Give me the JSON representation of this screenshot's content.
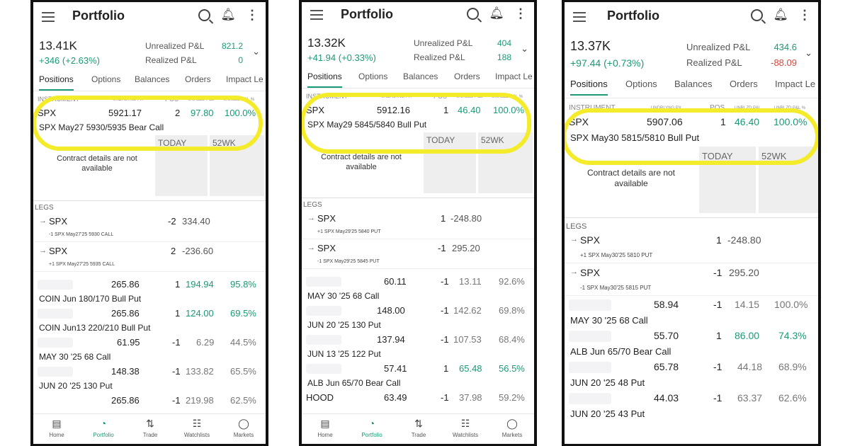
{
  "header": {
    "title": "Portfolio"
  },
  "labels": {
    "unrealized": "Unrealized P&L",
    "realized": "Realized P&L",
    "tabs": [
      "Positions",
      "Options",
      "Balances",
      "Orders",
      "Impact Le"
    ],
    "tabs_p1": [
      "Positions",
      "Options",
      "Balances",
      "Orders",
      "Impact Le"
    ],
    "col_instrument": "INSTRUMENT",
    "col_undpx": "UNDRLYNG PX",
    "col_pos": "POS",
    "col_unrlzd": "UNRLZD P&L",
    "col_unrlzd_pct": "UNRLZD P&L %",
    "today": "TODAY",
    "wk52": "52WK",
    "details_line1": "Contract details are not",
    "details_line2": "available",
    "legs": "LEGS"
  },
  "nav": [
    "Home",
    "Portfolio",
    "Trade",
    "Watchlists",
    "Markets"
  ],
  "p1": {
    "balance": "13.41K",
    "change": "+346 (+2.63%)",
    "unrealized": "821.2",
    "realized": "0",
    "pos": {
      "symbol": "SPX",
      "price": "5921.17",
      "qty": "2",
      "pnl": "97.80",
      "pct": "100.0%",
      "desc": "SPX May27 5930/5935 Bear Call"
    },
    "legs": [
      {
        "sym": "SPX",
        "pos": "-2",
        "price": "334.40",
        "sub": "-1 SPX May27'25 5930 CALL"
      },
      {
        "sym": "SPX",
        "pos": "2",
        "price": "-236.60",
        "sub": "+1 SPX May27'25 5935 CALL"
      }
    ],
    "rows": [
      {
        "px": "265.86",
        "pos": "1",
        "pnl": "194.94",
        "pct": "95.8%",
        "desc": "COIN Jun 180/170 Bull Put"
      },
      {
        "px": "265.86",
        "pos": "1",
        "pnl": "124.00",
        "pct": "69.5%",
        "desc": "COIN Jun13 220/210 Bull Put"
      },
      {
        "px": "61.95",
        "pos": "-1",
        "pnl": "6.29",
        "pct": "44.5%",
        "desc": "MAY 30 '25 68 Call"
      },
      {
        "px": "148.38",
        "pos": "-1",
        "pnl": "133.82",
        "pct": "65.5%",
        "desc": "JUN 20 '25 130 Put"
      },
      {
        "px": "265.86",
        "pos": "-1",
        "pnl": "219.98",
        "pct": "62.5%",
        "desc": ""
      }
    ]
  },
  "p2": {
    "balance": "13.32K",
    "change": "+41.94 (+0.33%)",
    "unrealized": "404",
    "realized": "188",
    "pos": {
      "symbol": "SPX",
      "price": "5912.16",
      "qty": "1",
      "pnl": "46.40",
      "pct": "100.0%",
      "desc": "SPX May29 5845/5840 Bull Put"
    },
    "legs": [
      {
        "sym": "SPX",
        "pos": "1",
        "price": "-248.80",
        "sub": "+1 SPX May29'25 5840 PUT"
      },
      {
        "sym": "SPX",
        "pos": "-1",
        "price": "295.20",
        "sub": "-1 SPX May29'25 5845 PUT"
      }
    ],
    "rows": [
      {
        "px": "60.11",
        "pos": "-1",
        "pnl": "13.11",
        "pct": "92.6%",
        "desc": "MAY 30 '25 68 Call"
      },
      {
        "px": "148.00",
        "pos": "-1",
        "pnl": "142.62",
        "pct": "69.8%",
        "desc": "JUN 20 '25 130 Put"
      },
      {
        "px": "137.94",
        "pos": "-1",
        "pnl": "107.53",
        "pct": "68.4%",
        "desc": "JUN 13 '25 122 Put"
      },
      {
        "px": "57.41",
        "pos": "1",
        "pnl": "65.48",
        "pct": "56.5%",
        "desc": "ALB Jun 65/70 Bear Call"
      },
      {
        "sym": "HOOD",
        "px": "63.49",
        "pos": "-1",
        "pnl": "37.98",
        "pct": "59.2%",
        "desc": ""
      }
    ]
  },
  "p3": {
    "balance": "13.37K",
    "change": "+97.44 (+0.73%)",
    "unrealized": "434.6",
    "realized": "-88.09",
    "pos": {
      "symbol": "SPX",
      "price": "5907.06",
      "qty": "1",
      "pnl": "46.40",
      "pct": "100.0%",
      "desc": "SPX May30 5815/5810 Bull Put"
    },
    "legs": [
      {
        "sym": "SPX",
        "pos": "1",
        "price": "-248.80",
        "sub": "+1 SPX May30'25 5810 PUT"
      },
      {
        "sym": "SPX",
        "pos": "-1",
        "price": "295.20",
        "sub": "-1 SPX May30'25 5815 PUT"
      }
    ],
    "rows": [
      {
        "px": "58.94",
        "pos": "-1",
        "pnl": "14.15",
        "pct": "100.0%",
        "desc": "MAY 30 '25 68 Call"
      },
      {
        "px": "55.70",
        "pos": "1",
        "pnl": "86.00",
        "pct": "74.3%",
        "desc": "ALB Jun 65/70 Bear Call"
      },
      {
        "px": "65.78",
        "pos": "-1",
        "pnl": "44.18",
        "pct": "68.9%",
        "desc": "JUN 20 '25 48 Put"
      },
      {
        "px": "44.03",
        "pos": "-1",
        "pnl": "63.37",
        "pct": "62.6%",
        "desc": "JUN 20 '25 43 Put"
      }
    ]
  },
  "colors": {
    "green": "#1a9a78",
    "red": "#d9483b",
    "highlight": "#f4ec2b"
  }
}
